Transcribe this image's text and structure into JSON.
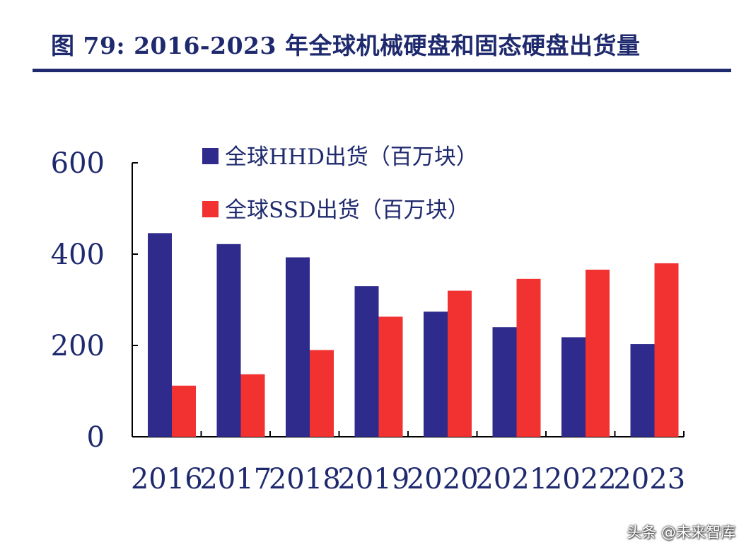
{
  "title": "图 79: 2016-2023 年全球机械硬盘和固态硬盘出货量",
  "watermark": "头条 @未来智库",
  "colors": {
    "title": "#1f2a6e",
    "axis_text": "#1f2a6e",
    "hhd": "#2e2b8c",
    "ssd": "#f23131"
  },
  "chart_data": {
    "type": "bar",
    "categories": [
      "2016",
      "2017",
      "2018",
      "2019",
      "2020",
      "2021",
      "2022",
      "2023"
    ],
    "series": [
      {
        "name": "全球HHD出货（百万块）",
        "values": [
          446,
          422,
          393,
          330,
          274,
          240,
          218,
          203
        ]
      },
      {
        "name": "全球SSD出货（百万块）",
        "values": [
          112,
          137,
          190,
          263,
          320,
          346,
          366,
          380
        ]
      }
    ],
    "yticks": [
      0,
      200,
      400,
      600
    ],
    "ylim": [
      0,
      600
    ],
    "legend_position": "top-left",
    "grid": false
  }
}
